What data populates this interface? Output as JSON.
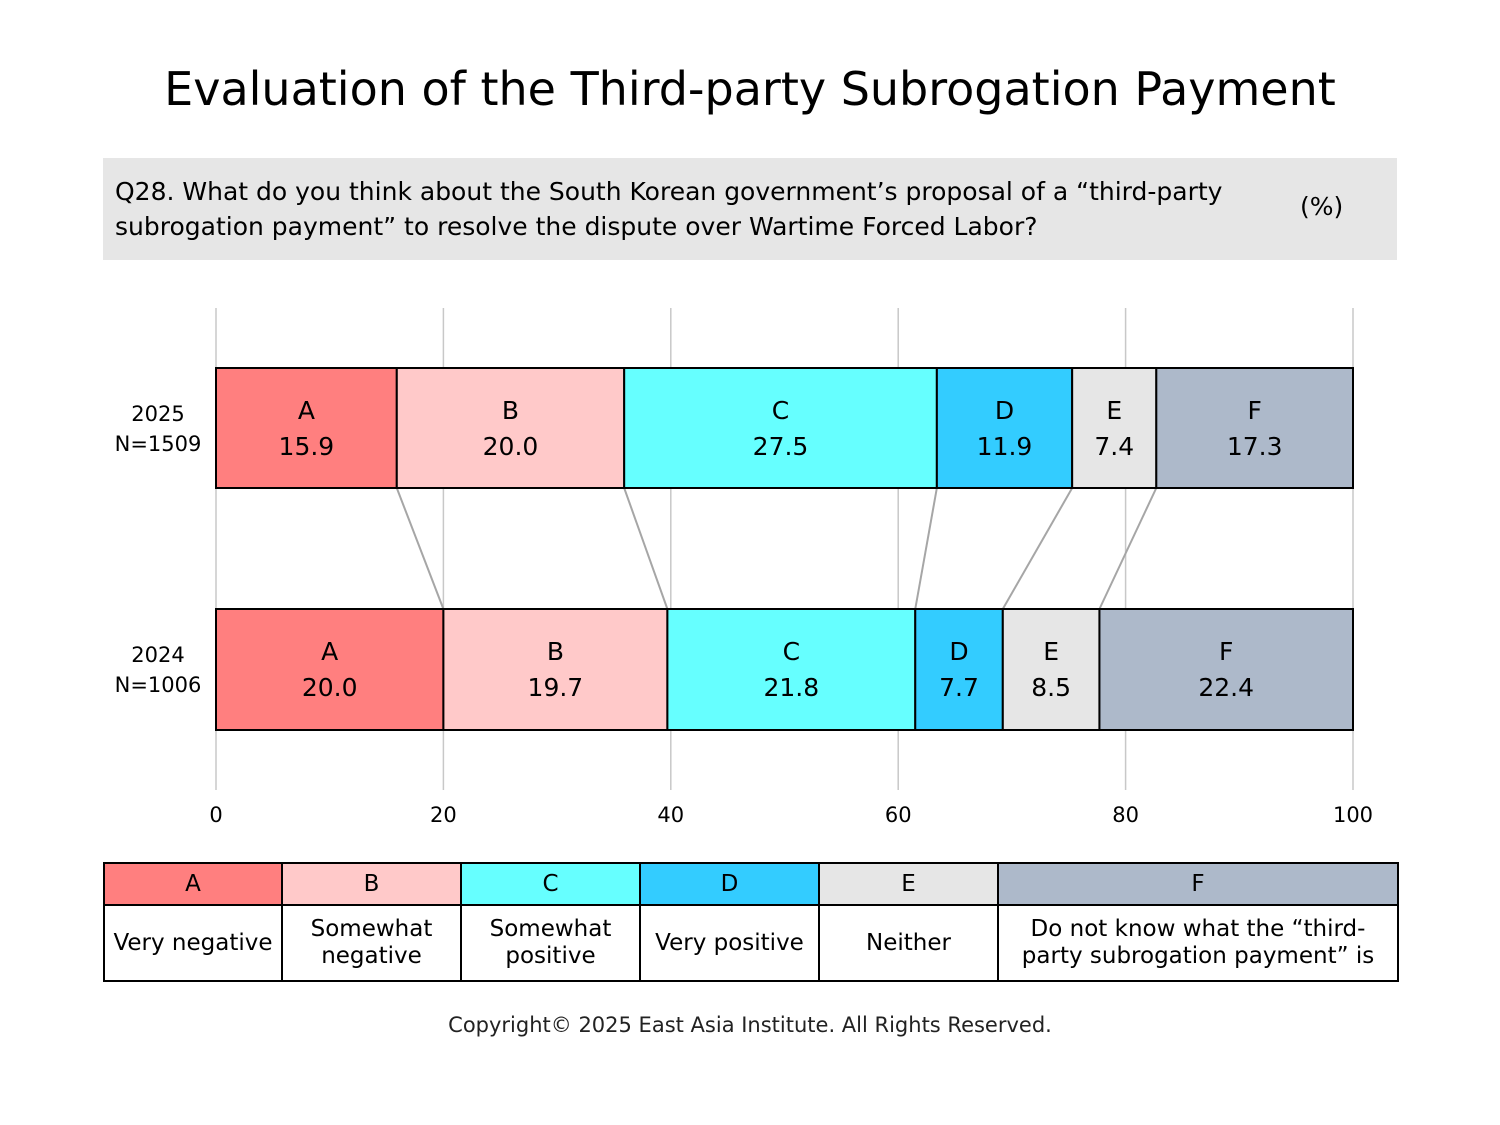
{
  "title": "Evaluation of the Third-party Subrogation Payment",
  "question": {
    "text": "Q28. What do you think about the South Korean government’s proposal of a “third-party subrogation payment” to resolve the dispute over Wartime Forced Labor?",
    "unit": "(%)"
  },
  "chart_data": {
    "type": "bar",
    "orientation": "horizontal-stacked",
    "categories": [
      {
        "year": "2025",
        "n": "N=1509"
      },
      {
        "year": "2024",
        "n": "N=1006"
      }
    ],
    "series": [
      {
        "name": "A",
        "values": [
          15.9,
          20.0
        ],
        "color": "#ff7f7f"
      },
      {
        "name": "B",
        "values": [
          20.0,
          19.7
        ],
        "color": "#ffc9c9"
      },
      {
        "name": "C",
        "values": [
          27.5,
          21.8
        ],
        "color": "#66ffff"
      },
      {
        "name": "D",
        "values": [
          11.9,
          7.7
        ],
        "color": "#33ccff"
      },
      {
        "name": "E",
        "values": [
          7.4,
          8.5
        ],
        "color": "#e6e6e6"
      },
      {
        "name": "F",
        "values": [
          17.3,
          22.4
        ],
        "color": "#adb9ca"
      }
    ],
    "xlim": [
      0,
      100
    ],
    "xticks": [
      "0",
      "20",
      "40",
      "60",
      "80",
      "100"
    ],
    "grid": true
  },
  "legend": {
    "keys": [
      "A",
      "B",
      "C",
      "D",
      "E",
      "F"
    ],
    "descriptions": [
      "Very negative",
      "Somewhat negative",
      "Somewhat positive",
      "Very positive",
      "Neither",
      "Do not know what the “third-party subrogation payment” is"
    ],
    "colors": [
      "#ff7f7f",
      "#ffc9c9",
      "#66ffff",
      "#33ccff",
      "#e6e6e6",
      "#adb9ca"
    ]
  },
  "copyright": "Copyright© 2025 East Asia Institute. All Rights Reserved."
}
